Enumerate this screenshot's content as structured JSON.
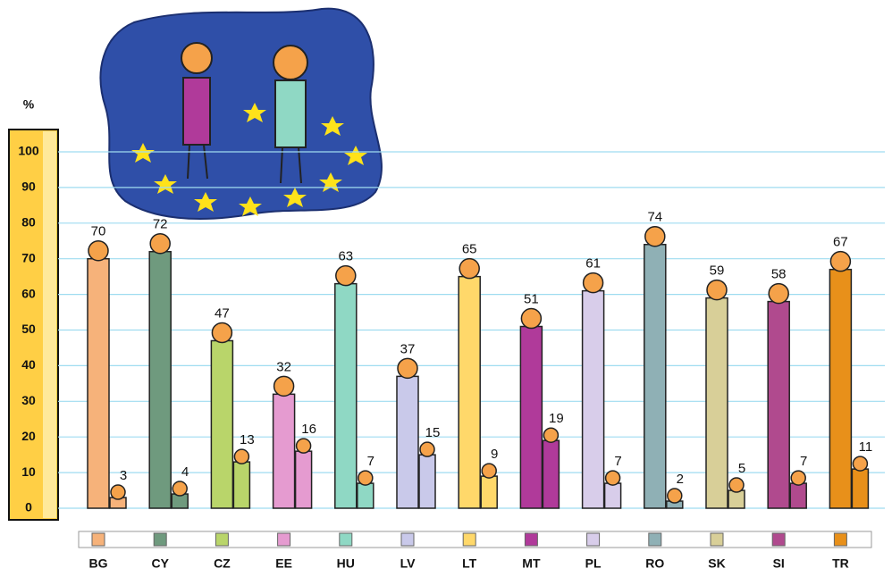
{
  "chart_data": {
    "type": "bar",
    "y_label": "%",
    "categories": [
      "BG",
      "CY",
      "CZ",
      "EE",
      "HU",
      "LV",
      "LT",
      "MT",
      "PL",
      "RO",
      "SK",
      "SI",
      "TR"
    ],
    "colors": [
      "#f6b27a",
      "#6f9a7e",
      "#b9d56a",
      "#e59bd0",
      "#8fd8c4",
      "#c9c9ea",
      "#ffd86a",
      "#b03a9a",
      "#d8cdea",
      "#8fb0b5",
      "#d8cf98",
      "#b04a8e",
      "#e8901a"
    ],
    "series": [
      {
        "values": [
          70,
          72,
          47,
          32,
          63,
          37,
          65,
          51,
          61,
          74,
          59,
          58,
          67
        ]
      },
      {
        "values": [
          3,
          4,
          13,
          16,
          7,
          15,
          9,
          19,
          7,
          2,
          5,
          7,
          11
        ]
      }
    ],
    "ylim": [
      0,
      100
    ],
    "yticks": [
      0,
      10,
      20,
      30,
      40,
      50,
      60,
      70,
      80,
      90,
      100
    ],
    "grid": true
  }
}
